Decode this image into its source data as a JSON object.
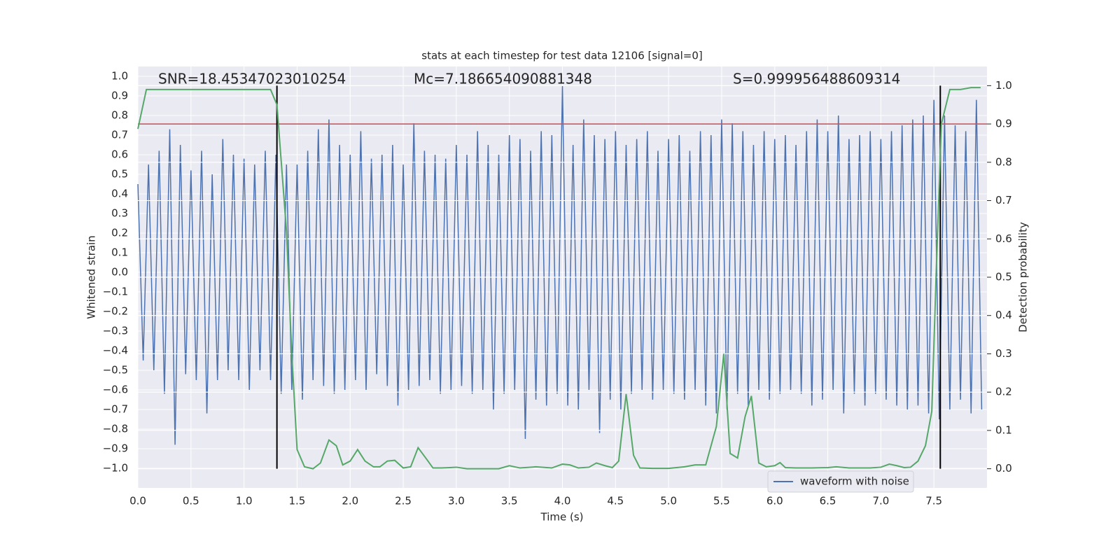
{
  "chart_data": {
    "type": "line",
    "title": "stats at each timestep for test data 12106 [signal=0]",
    "xlabel": "Time (s)",
    "ylabel": "Whitened strain",
    "y2label": "Detection probability",
    "annotations": [
      "SNR=18.45347023010254",
      "Mc=7.186654090881348",
      "S=0.999956488609314"
    ],
    "xlim": [
      0,
      8
    ],
    "ylim": [
      -1.1,
      1.05
    ],
    "y2lim": [
      -0.05,
      1.05
    ],
    "xticks": [
      {
        "value": 0,
        "label": "0.0"
      },
      0.5,
      {
        "value": 1,
        "label": "1.0"
      },
      1.5,
      {
        "value": 2,
        "label": "2.0"
      },
      2.5,
      {
        "value": 3,
        "label": "3.0"
      },
      3.5,
      {
        "value": 4,
        "label": "4.0"
      },
      4.5,
      {
        "value": 5,
        "label": "5.0"
      },
      5.5,
      {
        "value": 6,
        "label": "6.0"
      },
      6.5,
      {
        "value": 7,
        "label": "7.0"
      },
      7.5
    ],
    "yticks": [
      {
        "value": -1,
        "label": "−1.0"
      },
      {
        "value": -0.9,
        "label": "−0.9"
      },
      {
        "value": -0.8,
        "label": "−0.8"
      },
      {
        "value": -0.7,
        "label": "−0.7"
      },
      {
        "value": -0.6,
        "label": "−0.6"
      },
      {
        "value": -0.5,
        "label": "−0.5"
      },
      {
        "value": -0.4,
        "label": "−0.4"
      },
      {
        "value": -0.3,
        "label": "−0.3"
      },
      {
        "value": -0.2,
        "label": "−0.2"
      },
      {
        "value": -0.1,
        "label": "−0.1"
      },
      {
        "value": 0,
        "label": "0.0"
      },
      0.1,
      0.2,
      0.3,
      0.4,
      0.5,
      0.6,
      0.7,
      0.8,
      0.9,
      {
        "value": 1,
        "label": "1.0"
      }
    ],
    "y2ticks": [
      {
        "value": 0,
        "label": "0.0"
      },
      0.1,
      0.2,
      0.3,
      0.4,
      0.5,
      0.6,
      0.7,
      0.8,
      0.9,
      {
        "value": 1,
        "label": "1.0"
      }
    ],
    "grid": true,
    "legend": "lower right",
    "x": [
      0,
      0.05,
      0.1,
      0.15,
      0.2,
      0.25,
      0.3,
      0.35,
      0.4,
      0.45,
      0.5,
      0.55,
      0.6,
      0.65,
      0.7,
      0.75,
      0.8,
      0.85,
      0.9,
      0.95,
      1,
      1.05,
      1.1,
      1.15,
      1.2,
      1.25,
      1.3,
      1.35,
      1.4,
      1.45,
      1.5,
      1.55,
      1.6,
      1.65,
      1.7,
      1.75,
      1.8,
      1.85,
      1.9,
      1.95,
      2,
      2.05,
      2.1,
      2.15,
      2.2,
      2.25,
      2.3,
      2.35,
      2.4,
      2.45,
      2.5,
      2.55,
      2.6,
      2.65,
      2.7,
      2.75,
      2.8,
      2.85,
      2.9,
      2.95,
      3,
      3.05,
      3.1,
      3.15,
      3.2,
      3.25,
      3.3,
      3.35,
      3.4,
      3.45,
      3.5,
      3.55,
      3.6,
      3.65,
      3.7,
      3.75,
      3.8,
      3.85,
      3.9,
      3.95,
      4,
      4.05,
      4.1,
      4.15,
      4.2,
      4.25,
      4.3,
      4.35,
      4.4,
      4.45,
      4.5,
      4.55,
      4.6,
      4.65,
      4.7,
      4.75,
      4.8,
      4.85,
      4.9,
      4.95,
      5,
      5.05,
      5.1,
      5.15,
      5.2,
      5.25,
      5.3,
      5.35,
      5.4,
      5.45,
      5.5,
      5.55,
      5.6,
      5.65,
      5.7,
      5.75,
      5.8,
      5.85,
      5.9,
      5.95,
      6,
      6.05,
      6.1,
      6.15,
      6.2,
      6.25,
      6.3,
      6.35,
      6.4,
      6.45,
      6.5,
      6.55,
      6.6,
      6.65,
      6.7,
      6.75,
      6.8,
      6.85,
      6.9,
      6.95,
      7,
      7.05,
      7.1,
      7.15,
      7.2,
      7.25,
      7.3,
      7.35,
      7.4,
      7.45,
      7.5,
      7.55,
      7.6,
      7.65,
      7.7,
      7.75,
      7.8,
      7.85,
      7.9,
      7.95
    ],
    "series": [
      {
        "name": "waveform with noise",
        "color": "#4c72b0",
        "values": [
          0.45,
          -0.45,
          0.55,
          -0.5,
          0.62,
          -0.62,
          0.73,
          -0.88,
          0.65,
          -0.52,
          0.52,
          -0.55,
          0.62,
          -0.72,
          0.5,
          -0.55,
          0.68,
          -0.5,
          0.6,
          -0.55,
          0.58,
          -0.6,
          0.55,
          -0.5,
          0.62,
          -0.55,
          0.6,
          -0.62,
          0.55,
          -0.6,
          0.55,
          -0.65,
          0.62,
          -0.55,
          0.73,
          -0.58,
          0.78,
          -0.62,
          0.65,
          -0.6,
          0.6,
          -0.55,
          0.72,
          -0.6,
          0.58,
          -0.52,
          0.6,
          -0.58,
          0.65,
          -0.68,
          0.55,
          -0.6,
          0.76,
          -0.58,
          0.62,
          -0.55,
          0.6,
          -0.62,
          0.58,
          -0.6,
          0.65,
          -0.58,
          0.6,
          -0.62,
          0.72,
          -0.6,
          0.65,
          -0.7,
          0.6,
          -0.62,
          0.7,
          -0.6,
          0.68,
          -0.85,
          0.62,
          -0.65,
          0.72,
          -0.68,
          0.7,
          -0.62,
          0.95,
          -0.68,
          0.65,
          -0.7,
          0.78,
          -0.6,
          0.7,
          -0.82,
          0.68,
          -0.65,
          0.72,
          -0.7,
          0.65,
          -0.62,
          0.68,
          -0.6,
          0.72,
          -0.65,
          0.62,
          -0.6,
          0.68,
          -0.62,
          0.7,
          -0.65,
          0.62,
          -0.6,
          0.72,
          -0.68,
          0.7,
          -0.72,
          0.78,
          -0.7,
          0.76,
          -0.62,
          0.72,
          -0.68,
          0.65,
          -0.6,
          0.72,
          -0.65,
          0.68,
          -0.62,
          0.7,
          -0.6,
          0.65,
          -0.62,
          0.72,
          -0.68,
          0.78,
          -0.65,
          0.72,
          -0.6,
          0.8,
          -0.72,
          0.68,
          -0.62,
          0.7,
          -0.68,
          0.72,
          -0.62,
          0.68,
          -0.65,
          0.72,
          -0.68,
          0.75,
          -0.7,
          0.78,
          -0.68,
          0.8,
          -0.72,
          0.88,
          -0.75,
          0.8,
          -0.7,
          0.75,
          -0.65,
          0.72,
          -0.72,
          0.88,
          -0.7
        ]
      },
      {
        "color": "#55a868",
        "axis": "y2",
        "x": [
          0,
          0.08,
          0.2,
          0.5,
          0.8,
          1.0,
          1.25,
          1.31,
          1.4,
          1.45,
          1.5,
          1.57,
          1.65,
          1.72,
          1.8,
          1.87,
          1.93,
          2.0,
          2.07,
          2.14,
          2.22,
          2.28,
          2.35,
          2.42,
          2.5,
          2.57,
          2.64,
          2.72,
          2.78,
          2.86,
          3.0,
          3.1,
          3.4,
          3.5,
          3.6,
          3.75,
          3.9,
          4.0,
          4.07,
          4.15,
          4.25,
          4.32,
          4.4,
          4.47,
          4.53,
          4.6,
          4.67,
          4.73,
          4.85,
          5.0,
          5.15,
          5.25,
          5.35,
          5.45,
          5.52,
          5.58,
          5.65,
          5.72,
          5.78,
          5.85,
          5.92,
          6.0,
          6.05,
          6.1,
          6.2,
          6.35,
          6.5,
          6.58,
          6.7,
          6.9,
          7.0,
          7.08,
          7.15,
          7.22,
          7.28,
          7.35,
          7.42,
          7.48,
          7.52,
          7.57,
          7.65,
          7.75,
          7.85,
          7.94
        ],
        "values": [
          0.887,
          0.99,
          0.99,
          0.99,
          0.99,
          0.99,
          0.99,
          0.95,
          0.62,
          0.3,
          0.05,
          0.005,
          0,
          0.015,
          0.075,
          0.06,
          0.01,
          0.02,
          0.05,
          0.02,
          0.005,
          0.005,
          0.02,
          0.022,
          0.002,
          0.005,
          0.055,
          0.025,
          0.002,
          0.002,
          0.004,
          0,
          0,
          0.008,
          0.002,
          0.005,
          0.002,
          0.012,
          0.01,
          0.002,
          0.004,
          0.015,
          0.008,
          0.003,
          0.02,
          0.195,
          0.035,
          0.002,
          0.001,
          0.001,
          0.005,
          0.01,
          0.01,
          0.11,
          0.3,
          0.04,
          0.028,
          0.135,
          0.19,
          0.015,
          0.005,
          0.008,
          0.016,
          0.003,
          0.002,
          0.002,
          0.003,
          0.005,
          0.002,
          0.002,
          0.004,
          0.012,
          0.008,
          0.003,
          0.004,
          0.02,
          0.06,
          0.15,
          0.5,
          0.9,
          0.99,
          0.99,
          0.995,
          0.995
        ]
      }
    ],
    "hlines": [
      {
        "value": 0.9,
        "axis": "y2",
        "color": "#c44e52"
      }
    ],
    "vlines": {
      "x": [
        1.31,
        7.56
      ],
      "ymin": 0,
      "ymax": 1,
      "axis": "y2",
      "color": "#000000"
    }
  }
}
